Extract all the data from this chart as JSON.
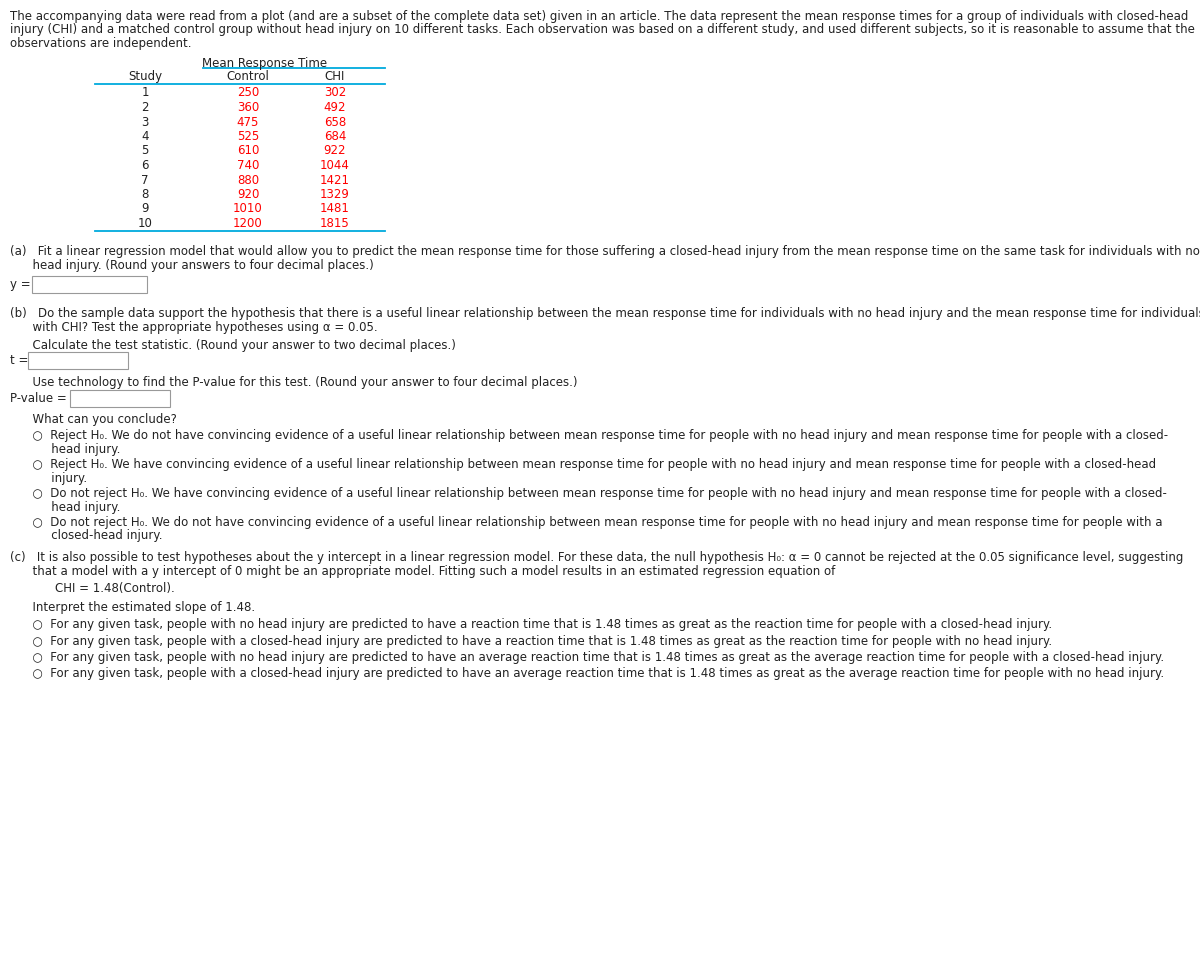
{
  "intro_text_lines": [
    "The accompanying data were read from a plot (and are a subset of the complete data set) given in an article. The data represent the mean response times for a group of individuals with closed-head",
    "injury (CHI) and a matched control group without head injury on 10 different tasks. Each observation was based on a different study, and used different subjects, so it is reasonable to assume that the",
    "observations are independent."
  ],
  "table_header_merged": "Mean Response Time",
  "col_headers": [
    "Study",
    "Control",
    "CHI"
  ],
  "studies": [
    "1",
    "2",
    "3",
    "4",
    "5",
    "6",
    "7",
    "8",
    "9",
    "10"
  ],
  "control": [
    "250",
    "360",
    "475",
    "525",
    "610",
    "740",
    "880",
    "920",
    "1010",
    "1200"
  ],
  "chi": [
    "302",
    "492",
    "658",
    "684",
    "922",
    "1044",
    "1421",
    "1329",
    "1481",
    "1815"
  ],
  "red_color": "#FF0000",
  "cyan_color": "#00AADD",
  "dark_color": "#222222",
  "bg_color": "#FFFFFF",
  "part_a_line1": "(a)   Fit a linear regression model that would allow you to predict the mean response time for those suffering a closed-head injury from the mean response time on the same task for individuals with no",
  "part_a_line2": "      head injury. (Round your answers to four decimal places.)",
  "part_b_line1": "(b)   Do the sample data support the hypothesis that there is a useful linear relationship between the mean response time for individuals with no head injury and the mean response time for individuals",
  "part_b_line2": "      with CHI? Test the appropriate hypotheses using α = 0.05.",
  "calc_stat": "      Calculate the test statistic. (Round your answer to two decimal places.)",
  "pvalue_prompt": "      Use technology to find the P-value for this test. (Round your answer to four decimal places.)",
  "conclude_header": "      What can you conclude?",
  "radio_b1_l1": "      ○  Reject H₀. We do not have convincing evidence of a useful linear relationship between mean response time for people with no head injury and mean response time for people with a closed-",
  "radio_b1_l2": "           head injury.",
  "radio_b2_l1": "      ○  Reject H₀. We have convincing evidence of a useful linear relationship between mean response time for people with no head injury and mean response time for people with a closed-head",
  "radio_b2_l2": "           injury.",
  "radio_b3_l1": "      ○  Do not reject H₀. We have convincing evidence of a useful linear relationship between mean response time for people with no head injury and mean response time for people with a closed-",
  "radio_b3_l2": "           head injury.",
  "radio_b4_l1": "      ○  Do not reject H₀. We do not have convincing evidence of a useful linear relationship between mean response time for people with no head injury and mean response time for people with a",
  "radio_b4_l2": "           closed-head injury.",
  "part_c_line1": "(c)   It is also possible to test hypotheses about the y intercept in a linear regression model. For these data, the null hypothesis H₀: α = 0 cannot be rejected at the 0.05 significance level, suggesting",
  "part_c_line2": "      that a model with a y intercept of 0 might be an appropriate model. Fitting such a model results in an estimated regression equation of",
  "equation": "            CHI = 1.48(Control).",
  "interpret_header": "      Interpret the estimated slope of 1.48.",
  "radio_c1": "      ○  For any given task, people with no head injury are predicted to have a reaction time that is 1.48 times as great as the reaction time for people with a closed-head injury.",
  "radio_c2": "      ○  For any given task, people with a closed-head injury are predicted to have a reaction time that is 1.48 times as great as the reaction time for people with no head injury.",
  "radio_c3": "      ○  For any given task, people with no head injury are predicted to have an average reaction time that is 1.48 times as great as the average reaction time for people with a closed-head injury.",
  "radio_c4": "      ○  For any given task, people with a closed-head injury are predicted to have an average reaction time that is 1.48 times as great as the average reaction time for people with no head injury."
}
